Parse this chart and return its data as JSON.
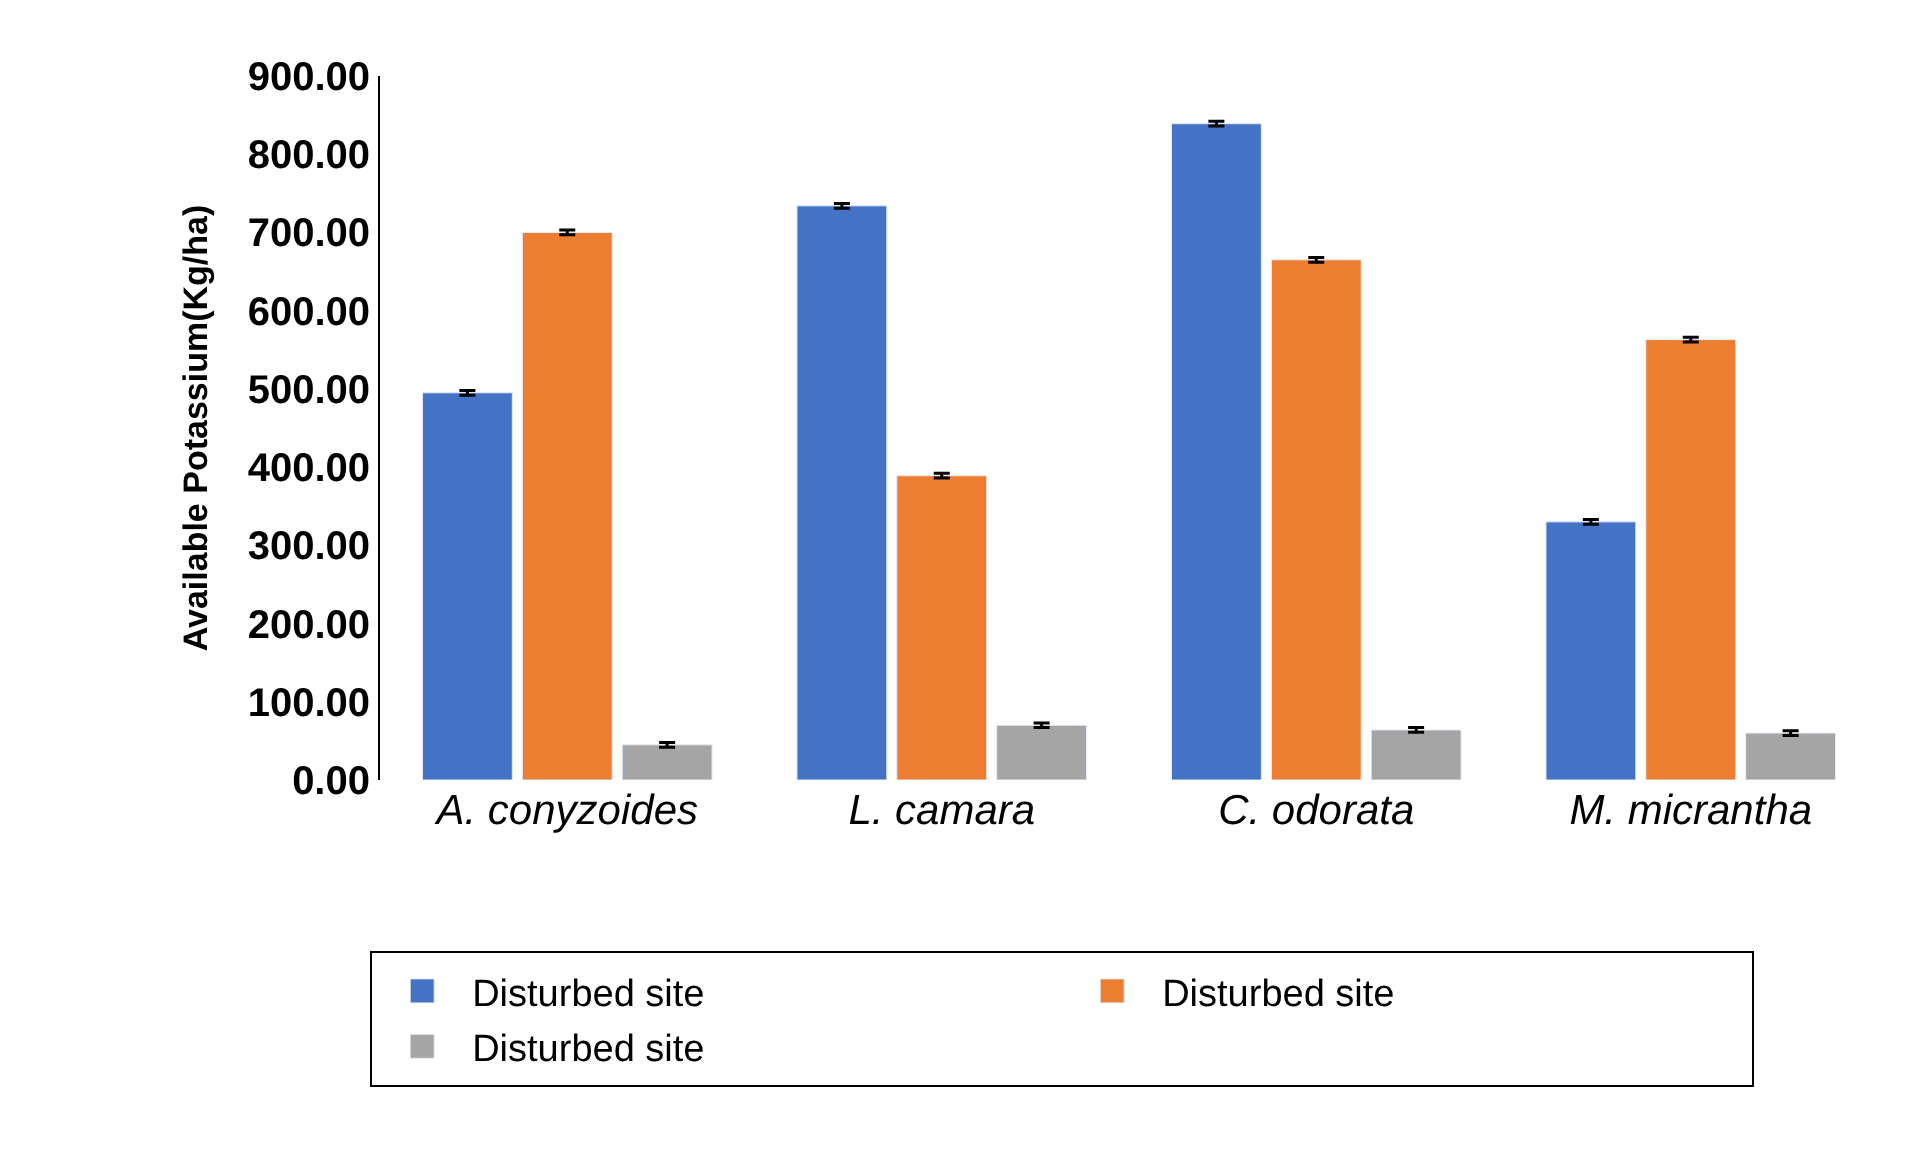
{
  "chart_data": {
    "type": "bar",
    "ylabel": "Available Potassium(Kg/ha)",
    "categories": [
      "A. conyzoides",
      "L. camara",
      "C. odorata",
      "M. micrantha"
    ],
    "series": [
      {
        "name": "Disturbed site",
        "color": "#4472c4",
        "values": [
          495,
          734,
          839,
          330
        ],
        "errors": [
          3,
          3,
          3,
          3
        ]
      },
      {
        "name": "Disturbed site",
        "color": "#ed7d31",
        "values": [
          700,
          389,
          665,
          563
        ],
        "errors": [
          3,
          3,
          3,
          3
        ]
      },
      {
        "name": "Disturbed site",
        "color": "#a5a5a5",
        "values": [
          45,
          70,
          64,
          60
        ],
        "errors": [
          3,
          3,
          3,
          3
        ]
      }
    ],
    "ylim": [
      0,
      900
    ],
    "yticks": [
      {
        "value": 0,
        "label": "0.00"
      },
      {
        "value": 100,
        "label": "100.00"
      },
      {
        "value": 200,
        "label": "200.00"
      },
      {
        "value": 300,
        "label": "300.00"
      },
      {
        "value": 400,
        "label": "400.00"
      },
      {
        "value": 500,
        "label": "500.00"
      },
      {
        "value": 600,
        "label": "600.00"
      },
      {
        "value": 700,
        "label": "700.00"
      },
      {
        "value": 800,
        "label": "800.00"
      },
      {
        "value": 900,
        "label": "900.00"
      }
    ],
    "legend": "bottom"
  }
}
